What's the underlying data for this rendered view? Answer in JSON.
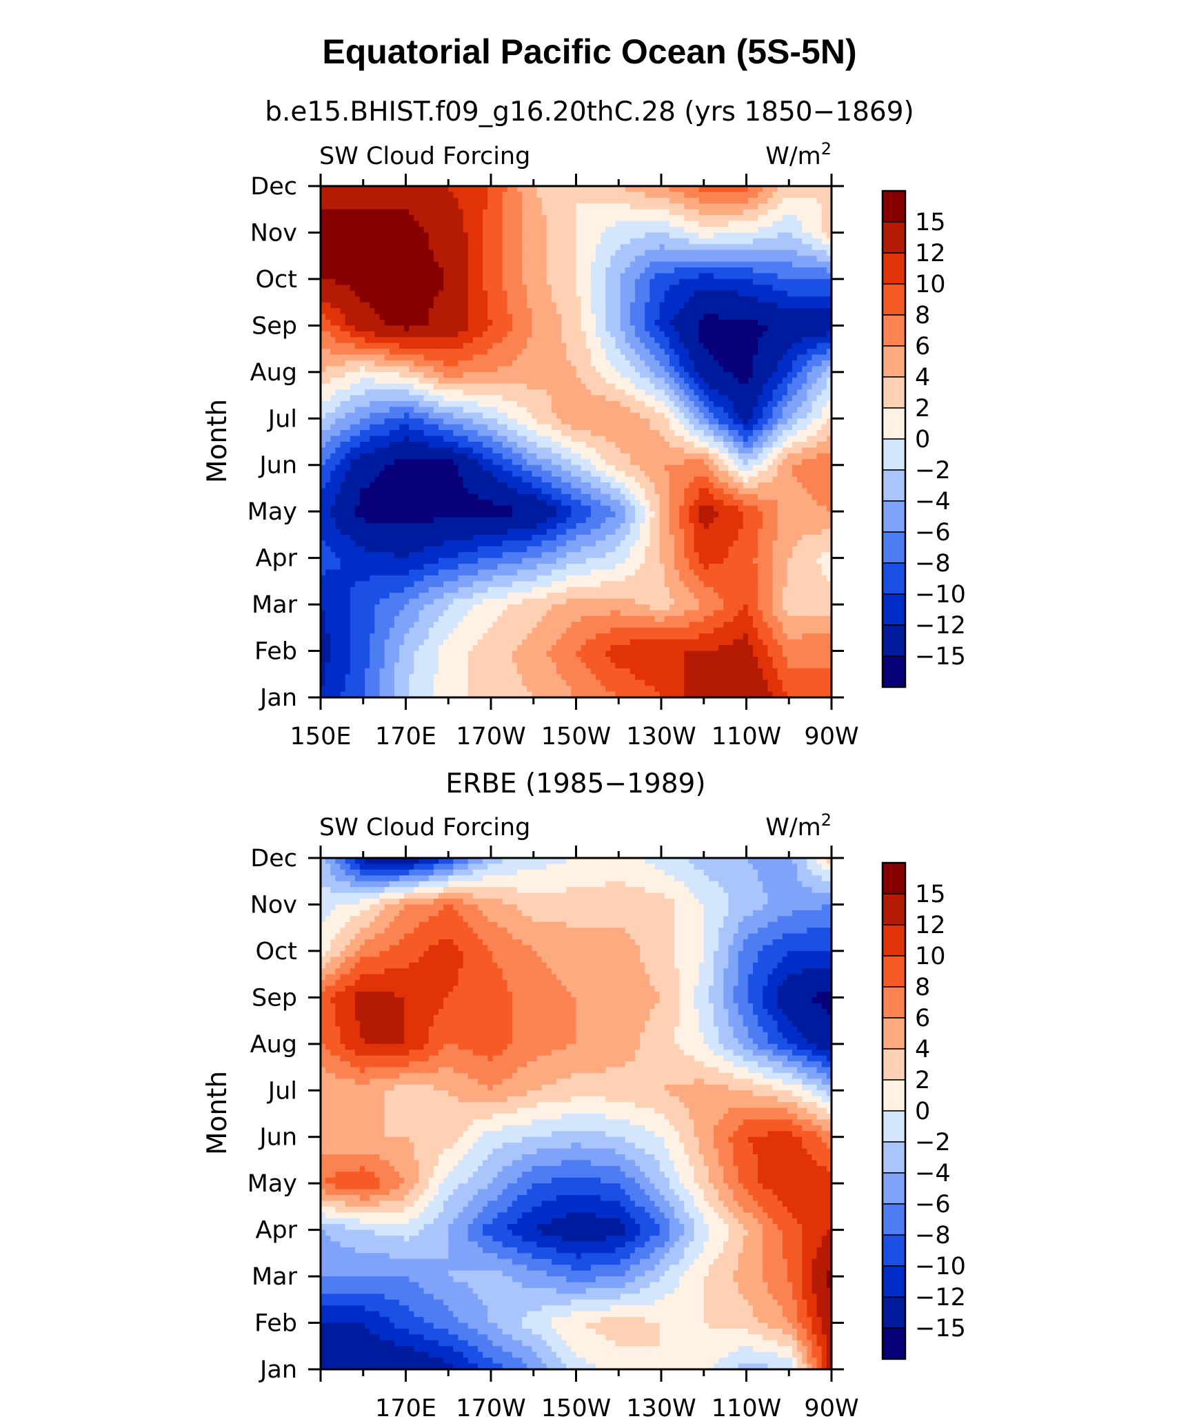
{
  "figure": {
    "title": "Equatorial Pacific Ocean (5S-5N)"
  },
  "colors": {
    "levels": [
      "#08007a",
      "#001c9e",
      "#002cc8",
      "#1a50e6",
      "#4d7cf3",
      "#7ea3f8",
      "#a9c5fb",
      "#d4e6fd",
      "#fff1e3",
      "#fed0b4",
      "#fdaa80",
      "#fb8351",
      "#f65a25",
      "#e23208",
      "#b41a04",
      "#870000"
    ]
  },
  "chart_data": [
    {
      "type": "heatmap",
      "subtitle": "b.e15.BHIST.f09_g16.20thC.28 (yrs 1850−1869)",
      "left_label": "SW Cloud Forcing",
      "right_label": "W/m",
      "units_sup": "2",
      "ylabel": "Month",
      "x_tick_labels": [
        "150E",
        "170E",
        "170W",
        "150W",
        "130W",
        "110W",
        "90W"
      ],
      "y_tick_labels": [
        "Jan",
        "Feb",
        "Mar",
        "Apr",
        "May",
        "Jun",
        "Jul",
        "Aug",
        "Sep",
        "Oct",
        "Nov",
        "Dec"
      ],
      "colorbar_labels": [
        "15",
        "12",
        "10",
        "8",
        "6",
        "4",
        "2",
        "0",
        "−2",
        "−4",
        "−6",
        "−8",
        "−10",
        "−12",
        "−15"
      ],
      "xlim_deg_east": [
        150,
        270
      ],
      "levels": [
        -15,
        -12,
        -10,
        -8,
        -6,
        -4,
        -2,
        0,
        2,
        4,
        6,
        8,
        10,
        12,
        15
      ],
      "lon_deg_east": [
        150,
        160,
        170,
        180,
        190,
        200,
        210,
        220,
        230,
        240,
        250,
        260,
        270
      ],
      "values_by_month": [
        [
          -12,
          -8,
          -2,
          1,
          3,
          4,
          6,
          8,
          10,
          14,
          15,
          10,
          8
        ],
        [
          -13,
          -9,
          -3,
          1,
          3,
          5,
          8,
          11,
          12,
          12,
          13,
          7,
          8
        ],
        [
          -12,
          -9,
          -6,
          -2,
          1,
          3,
          5,
          5,
          3,
          6,
          10,
          3,
          3
        ],
        [
          -9,
          -11,
          -12,
          -10,
          -8,
          -6,
          -3,
          -1,
          4,
          11,
          9,
          4,
          1
        ],
        [
          -11,
          -16,
          -16,
          -16,
          -16,
          -15,
          -10,
          -6,
          4,
          13,
          10,
          5,
          6
        ],
        [
          -8,
          -14,
          -16,
          -16,
          -11,
          -6,
          -2,
          3,
          6,
          7,
          -2,
          6,
          8
        ],
        [
          -2,
          -6,
          -9,
          -5,
          -2,
          2,
          6,
          6,
          3,
          -6,
          -13,
          -4,
          2
        ],
        [
          4,
          1,
          3,
          7,
          6,
          5,
          4,
          0,
          -5,
          -14,
          -16,
          -10,
          -2
        ],
        [
          8,
          14,
          16,
          14,
          10,
          6,
          3,
          -4,
          -11,
          -16,
          -16,
          -14,
          -14
        ],
        [
          15,
          16,
          16,
          15,
          9,
          5,
          2,
          -4,
          -9,
          -11,
          -10,
          -8,
          -8
        ],
        [
          16,
          16,
          16,
          14,
          9,
          5,
          2,
          -1,
          -2,
          1,
          0,
          -2,
          3
        ],
        [
          14,
          14,
          14,
          12,
          10,
          4,
          2,
          4,
          6,
          9,
          9,
          3,
          2
        ]
      ]
    },
    {
      "type": "heatmap",
      "subtitle": "ERBE (1985−1989)",
      "left_label": "SW Cloud Forcing",
      "right_label": "W/m",
      "units_sup": "2",
      "ylabel": "Month",
      "x_tick_labels": [
        "170E",
        "170W",
        "150W",
        "130W",
        "110W",
        "90W"
      ],
      "y_tick_labels": [
        "Jan",
        "Feb",
        "Mar",
        "Apr",
        "May",
        "Jun",
        "Jul",
        "Aug",
        "Sep",
        "Oct",
        "Nov",
        "Dec"
      ],
      "colorbar_labels": [
        "15",
        "12",
        "10",
        "8",
        "6",
        "4",
        "2",
        "0",
        "−2",
        "−4",
        "−6",
        "−8",
        "−10",
        "−12",
        "−15"
      ],
      "xlim_deg_east": [
        150,
        270
      ],
      "levels": [
        -15,
        -12,
        -10,
        -8,
        -6,
        -4,
        -2,
        0,
        2,
        4,
        6,
        8,
        10,
        12,
        15
      ],
      "lon_deg_east": [
        150,
        160,
        170,
        180,
        190,
        200,
        210,
        220,
        230,
        240,
        250,
        260,
        270
      ],
      "values_by_month": [
        [
          -12,
          -14,
          -15,
          -13,
          -9,
          -6,
          -1,
          1,
          2,
          1,
          -3,
          -2,
          13
        ],
        [
          -12,
          -12,
          -9,
          -7,
          -4,
          -1,
          2,
          3,
          2,
          2,
          3,
          6,
          14
        ],
        [
          -6,
          -6,
          -6,
          -4,
          -3,
          -5,
          -7,
          -6,
          -2,
          2,
          5,
          8,
          16
        ],
        [
          -4,
          -2,
          -1,
          -4,
          -9,
          -12,
          -14,
          -13,
          -8,
          -1,
          4,
          9,
          12
        ],
        [
          8,
          10,
          6,
          -1,
          -4,
          -8,
          -9,
          -8,
          -3,
          3,
          9,
          12,
          11
        ],
        [
          5,
          4,
          4,
          3,
          -1,
          -2,
          -3,
          -2,
          0,
          5,
          10,
          11,
          7
        ],
        [
          4,
          5,
          3,
          4,
          6,
          4,
          3,
          3,
          4,
          5,
          4,
          2,
          -3
        ],
        [
          8,
          12,
          12,
          8,
          9,
          7,
          6,
          5,
          3,
          0,
          -5,
          -10,
          -14
        ],
        [
          9,
          13,
          12,
          10,
          9,
          7,
          6,
          5,
          4,
          -1,
          -8,
          -14,
          -16
        ],
        [
          1,
          7,
          9,
          11,
          8,
          6,
          5,
          5,
          3,
          0,
          -7,
          -10,
          -10
        ],
        [
          -1,
          1,
          6,
          8,
          5,
          3,
          3,
          3,
          3,
          0,
          -3,
          -5,
          -6
        ],
        [
          -3,
          -13,
          -15,
          -10,
          -3,
          -1,
          0,
          1,
          -1,
          -3,
          -4,
          -5,
          3
        ]
      ]
    }
  ]
}
